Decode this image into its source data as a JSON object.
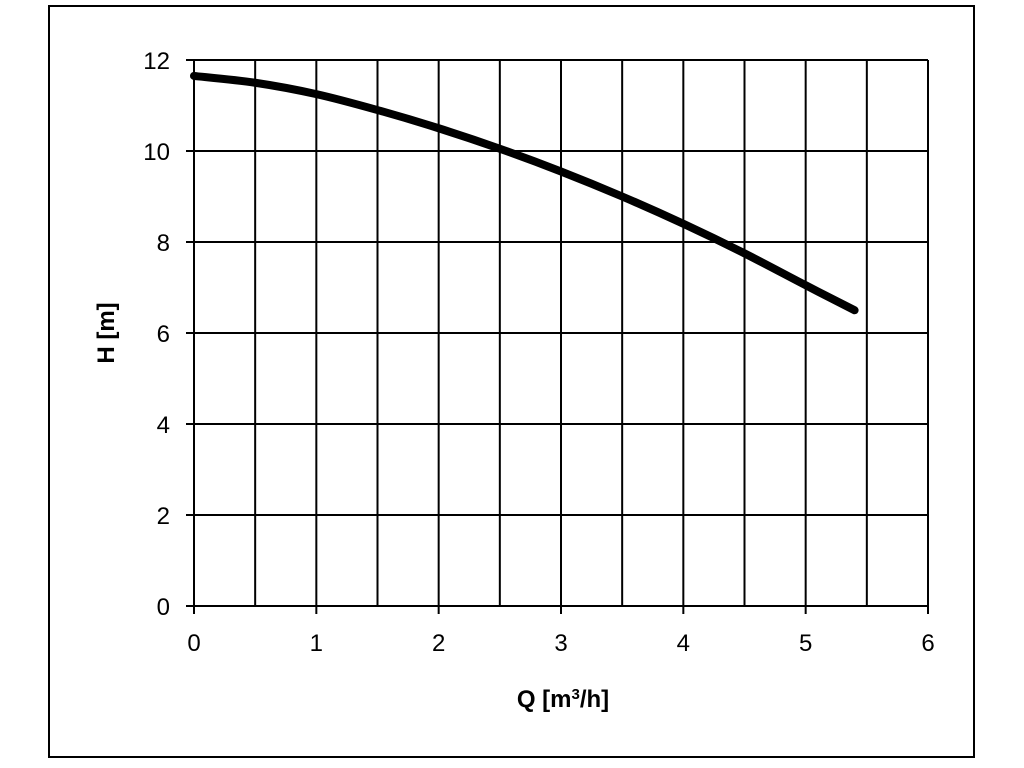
{
  "chart_data": {
    "type": "line",
    "xlabel": "Q [m³/h]",
    "ylabel": "H [m]",
    "xlim": [
      0,
      6
    ],
    "ylim": [
      0,
      12
    ],
    "x_ticks": [
      "0",
      "1",
      "2",
      "3",
      "4",
      "5",
      "6"
    ],
    "y_ticks": [
      "0",
      "2",
      "4",
      "6",
      "8",
      "10",
      "12"
    ],
    "x_grid_step": 0.5,
    "y_grid_step": 2,
    "grid": true,
    "series": [
      {
        "color": "#000000",
        "x": [
          0,
          0.5,
          1.0,
          1.5,
          2.0,
          2.5,
          3.0,
          3.5,
          4.0,
          4.5,
          5.0,
          5.4
        ],
        "y": [
          11.65,
          11.5,
          11.25,
          10.9,
          10.5,
          10.05,
          9.55,
          9.0,
          8.4,
          7.75,
          7.05,
          6.5
        ]
      }
    ]
  }
}
